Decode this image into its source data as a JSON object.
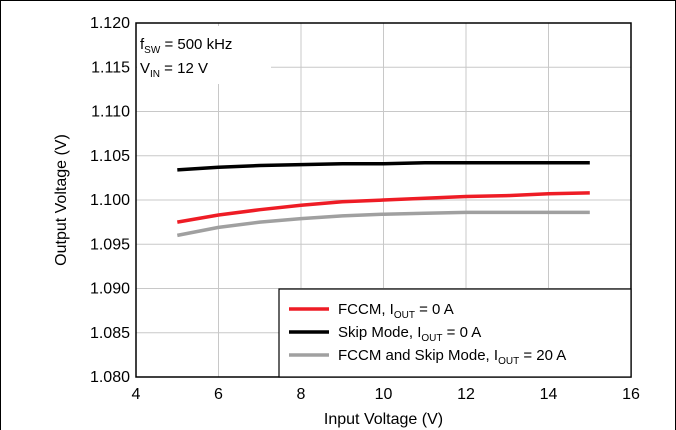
{
  "chart_data": {
    "type": "line",
    "xlabel": "Input Voltage (V)",
    "ylabel": "Output Voltage (V)",
    "xlim": [
      4,
      16
    ],
    "ylim": [
      1.08,
      1.12
    ],
    "xticks": [
      4,
      6,
      8,
      10,
      12,
      14,
      16
    ],
    "xtick_labels": [
      "4",
      "6",
      "8",
      "10",
      "12",
      "14",
      "16"
    ],
    "yticks": [
      1.08,
      1.085,
      1.09,
      1.095,
      1.1,
      1.105,
      1.11,
      1.115,
      1.12
    ],
    "ytick_labels": [
      "1.080",
      "1.085",
      "1.090",
      "1.095",
      "1.100",
      "1.105",
      "1.110",
      "1.115",
      "1.120"
    ],
    "grid": true,
    "annotation": {
      "line1": {
        "base": "f",
        "sub": "SW",
        "rest": " = 500 kHz"
      },
      "line2": {
        "base": "V",
        "sub": "IN",
        "rest": " = 12 V"
      }
    },
    "legend_position": "bottom-right",
    "series": [
      {
        "legend": {
          "text": "FCCM, I",
          "sub": "OUT",
          "rest": " = 0 A"
        },
        "color": "#ee1c25",
        "x": [
          5,
          6,
          7,
          8,
          9,
          10,
          11,
          12,
          13,
          14,
          15
        ],
        "y": [
          1.0975,
          1.0983,
          1.0989,
          1.0994,
          1.0998,
          1.1,
          1.1002,
          1.1004,
          1.1005,
          1.1007,
          1.1008
        ]
      },
      {
        "legend": {
          "text": "Skip Mode, I",
          "sub": "OUT",
          "rest": " = 0 A"
        },
        "color": "#000000",
        "x": [
          5,
          6,
          7,
          8,
          9,
          10,
          11,
          12,
          13,
          14,
          15
        ],
        "y": [
          1.1034,
          1.1037,
          1.1039,
          1.104,
          1.1041,
          1.1041,
          1.1042,
          1.1042,
          1.1042,
          1.1042,
          1.1042
        ]
      },
      {
        "legend": {
          "text": "FCCM and Skip Mode, I",
          "sub": "OUT",
          "rest": " = 20 A"
        },
        "color": "#a0a0a0",
        "x": [
          5,
          6,
          7,
          8,
          9,
          10,
          11,
          12,
          13,
          14,
          15
        ],
        "y": [
          1.096,
          1.0969,
          1.0975,
          1.0979,
          1.0982,
          1.0984,
          1.0985,
          1.0986,
          1.0986,
          1.0986,
          1.0986
        ]
      }
    ]
  }
}
